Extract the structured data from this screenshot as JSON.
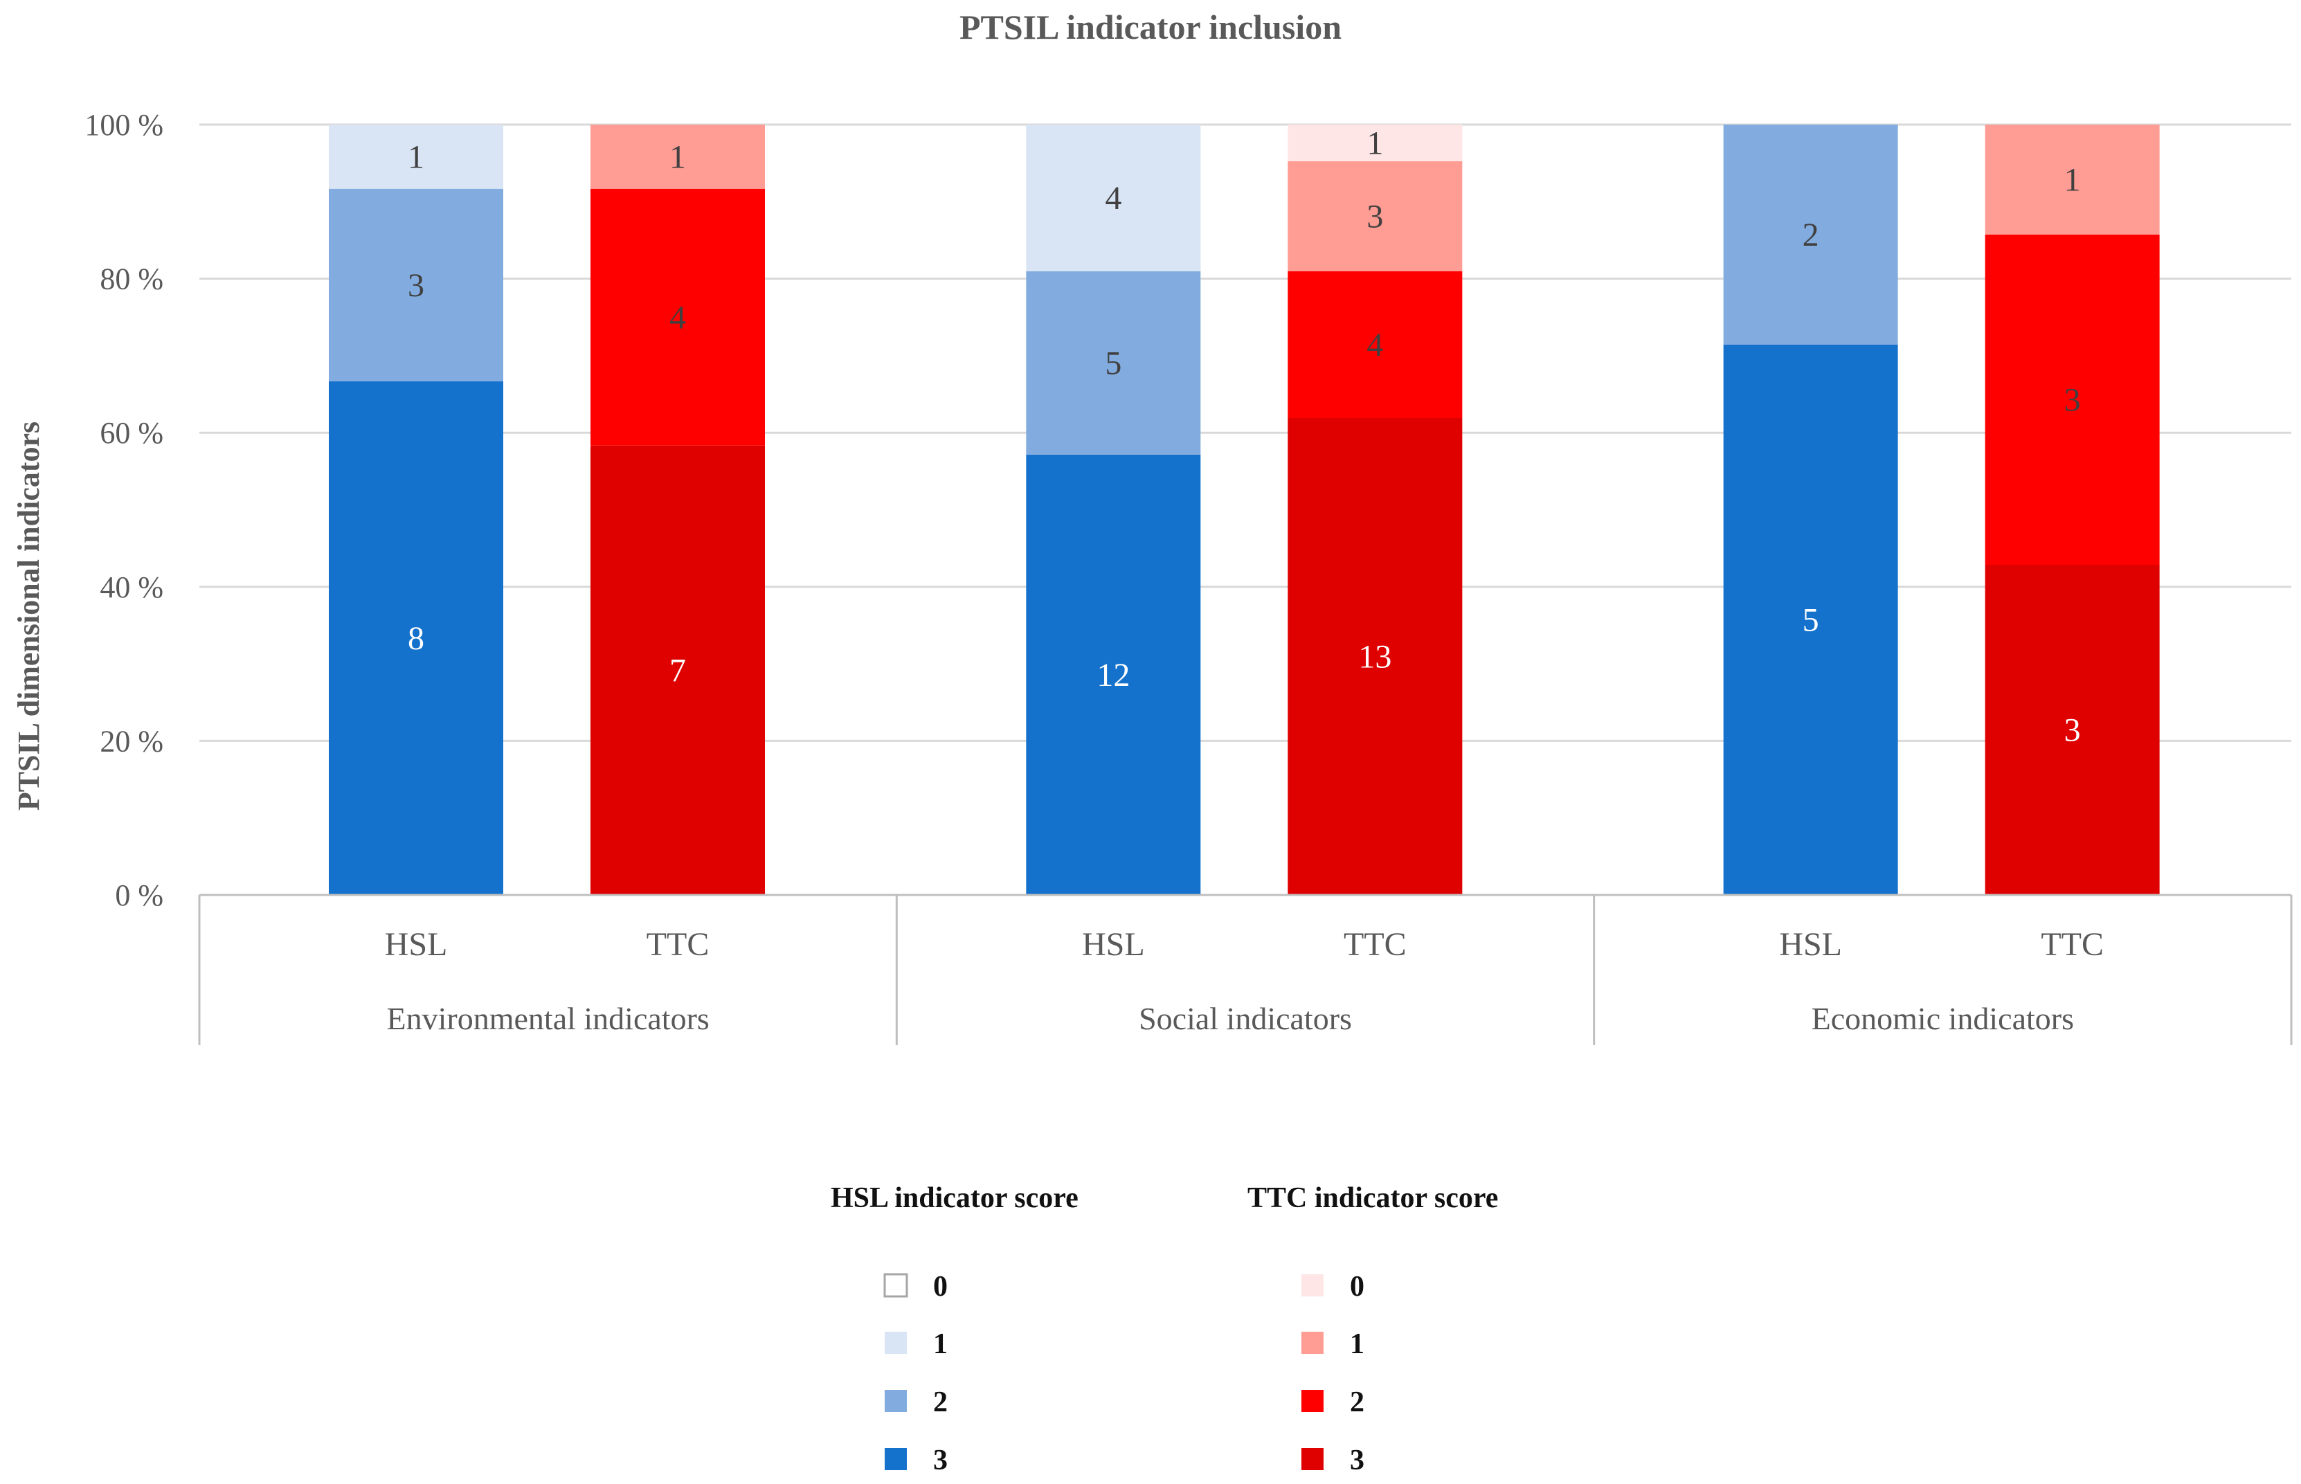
{
  "chart_data": {
    "type": "bar",
    "stacked": true,
    "normalized": true,
    "title": "PTSIL indicator inclusion",
    "xlabel": "",
    "ylabel": "PTSIL dimensional indicators",
    "ylim": [
      0,
      100
    ],
    "yticks": [
      "0 %",
      "20 %",
      "40 %",
      "60 %",
      "80 %",
      "100 %"
    ],
    "groups": [
      "Environmental indicators",
      "Social indicators",
      "Economic indicators"
    ],
    "bars": [
      {
        "group": 0,
        "label": "HSL",
        "palette": "hsl",
        "segments": [
          {
            "score": 3,
            "count": 8
          },
          {
            "score": 2,
            "count": 3
          },
          {
            "score": 1,
            "count": 1
          },
          {
            "score": 0,
            "count": 0
          }
        ]
      },
      {
        "group": 0,
        "label": "TTC",
        "palette": "ttc",
        "segments": [
          {
            "score": 3,
            "count": 7
          },
          {
            "score": 2,
            "count": 4
          },
          {
            "score": 1,
            "count": 1
          },
          {
            "score": 0,
            "count": 0
          }
        ]
      },
      {
        "group": 1,
        "label": "HSL",
        "palette": "hsl",
        "segments": [
          {
            "score": 3,
            "count": 12
          },
          {
            "score": 2,
            "count": 5
          },
          {
            "score": 1,
            "count": 4
          },
          {
            "score": 0,
            "count": 0
          }
        ]
      },
      {
        "group": 1,
        "label": "TTC",
        "palette": "ttc",
        "segments": [
          {
            "score": 3,
            "count": 13
          },
          {
            "score": 2,
            "count": 4
          },
          {
            "score": 1,
            "count": 3
          },
          {
            "score": 0,
            "count": 1
          }
        ]
      },
      {
        "group": 2,
        "label": "HSL",
        "palette": "hsl",
        "segments": [
          {
            "score": 3,
            "count": 5
          },
          {
            "score": 2,
            "count": 2
          },
          {
            "score": 1,
            "count": 0
          },
          {
            "score": 0,
            "count": 0
          }
        ]
      },
      {
        "group": 2,
        "label": "TTC",
        "palette": "ttc",
        "segments": [
          {
            "score": 3,
            "count": 3
          },
          {
            "score": 2,
            "count": 3
          },
          {
            "score": 1,
            "count": 1
          },
          {
            "score": 0,
            "count": 0
          }
        ]
      }
    ],
    "colors": {
      "hsl": {
        "0": "#ffffff",
        "1": "#d9e4f5",
        "2": "#82ace0",
        "3": "#1572cc"
      },
      "ttc": {
        "0": "#ffe6e6",
        "1": "#ff9c94",
        "2": "#ff0000",
        "3": "#df0000"
      }
    },
    "label_colors": {
      "hsl": {
        "0": "#404040",
        "1": "#404040",
        "2": "#404040",
        "3": "#ffffff"
      },
      "ttc": {
        "0": "#404040",
        "1": "#404040",
        "2": "#404040",
        "3": "#ffffff"
      }
    },
    "legend": [
      {
        "title": "HSL indicator score",
        "palette": "hsl",
        "items": [
          "0",
          "1",
          "2",
          "3"
        ]
      },
      {
        "title": "TTC indicator score",
        "palette": "ttc",
        "items": [
          "0",
          "1",
          "2",
          "3"
        ]
      }
    ],
    "legend_position": "bottom"
  }
}
